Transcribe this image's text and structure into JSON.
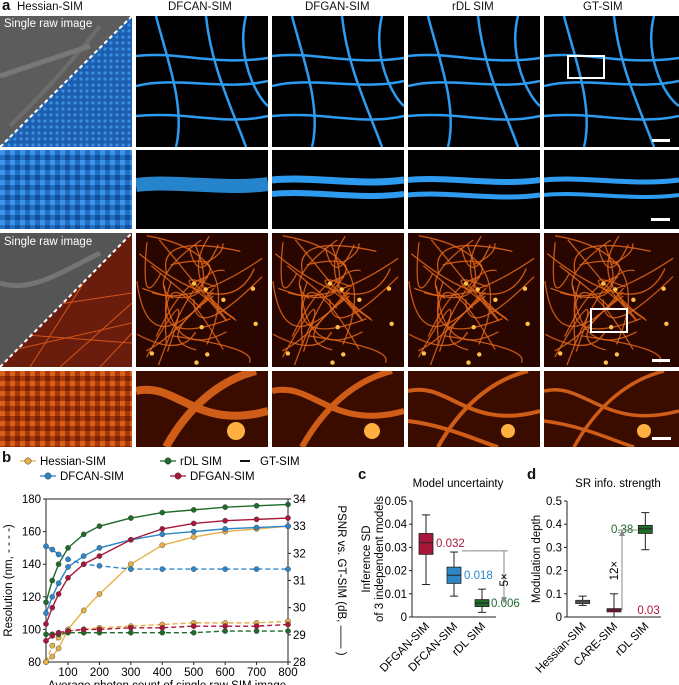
{
  "panel_a": {
    "letter": "a",
    "columns": [
      "Hessian-SIM",
      "DFCAN-SIM",
      "DFGAN-SIM",
      "rDL SIM",
      "GT-SIM"
    ],
    "raw_label_top": "Single raw image",
    "raw_label_bottom": "Single raw image"
  },
  "panel_b": {
    "letter": "b",
    "legend": [
      "Hessian-SIM",
      "rDL SIM",
      "GT-SIM",
      "DFCAN-SIM",
      "DFGAN-SIM"
    ],
    "xlabel": "Average photon count of single raw SIM image",
    "ylabel_left": "Resolution (nm, - - - -)",
    "ylabel_right": "PSNR vs. GT-SIM (dB, —— )",
    "x_ticks": [
      "100",
      "200",
      "300",
      "400",
      "500",
      "600",
      "700",
      "800"
    ],
    "y_left_ticks": [
      "80",
      "100",
      "120",
      "140",
      "160",
      "180"
    ],
    "y_right_ticks": [
      "28",
      "29",
      "30",
      "31",
      "32",
      "33",
      "34"
    ]
  },
  "panel_c": {
    "letter": "c",
    "title": "Model uncertainty",
    "ylabel1": "Inference SD",
    "ylabel2": "of 3 independent models",
    "y_ticks": [
      "0",
      "0.01",
      "0.02",
      "0.03",
      "0.04",
      "0.05"
    ],
    "categories": [
      "DFGAN-SIM",
      "DFCAN-SIM",
      "rDL SIM"
    ],
    "value_labels": [
      "0.032",
      "0.018",
      "0.006"
    ],
    "fold_label": "5×"
  },
  "panel_d": {
    "letter": "d",
    "title": "SR info. strength",
    "ylabel": "Modulation depth",
    "y_ticks": [
      "0",
      "0.1",
      "0.2",
      "0.3",
      "0.4",
      "0.5"
    ],
    "categories": [
      "Hessian-SIM",
      "CARE-SIM",
      "rDL SIM"
    ],
    "value_labels": [
      "0.38",
      "0.03"
    ],
    "fold_label": "12×"
  },
  "colors": {
    "hessian": "#e8b04a",
    "rdl": "#1e6b2a",
    "gt": "#111111",
    "dfcan": "#2e86c8",
    "dfgan": "#a8173a",
    "microtubule": "#2d9bf0",
    "actin": "#ff8a1e"
  },
  "chart_data": [
    {
      "type": "line",
      "x": [
        30,
        50,
        70,
        100,
        150,
        200,
        300,
        400,
        500,
        600,
        700,
        800
      ],
      "series": [
        {
          "name": "Hessian-SIM",
          "psnr_db": [
            28.0,
            28.2,
            28.5,
            29.2,
            29.9,
            30.5,
            31.6,
            32.3,
            32.6,
            32.8,
            32.9,
            33.0
          ],
          "resolution_nm": [
            80,
            90,
            95,
            99,
            100,
            101,
            102,
            103,
            104,
            104,
            104,
            105
          ]
        },
        {
          "name": "rDL SIM",
          "psnr_db": [
            30.2,
            31.0,
            31.6,
            32.2,
            32.7,
            33.0,
            33.3,
            33.5,
            33.6,
            33.7,
            33.75,
            33.8
          ],
          "resolution_nm": [
            97,
            97,
            97,
            98,
            98,
            98,
            98,
            98,
            98,
            99,
            99,
            99
          ]
        },
        {
          "name": "DFCAN-SIM",
          "psnr_db": [
            29.8,
            30.4,
            30.9,
            31.5,
            31.9,
            32.2,
            32.5,
            32.7,
            32.8,
            32.9,
            32.95,
            33.0
          ],
          "resolution_nm": [
            151,
            149,
            146,
            143,
            140,
            139,
            137,
            137,
            137,
            137,
            137,
            137
          ]
        },
        {
          "name": "DFGAN-SIM",
          "psnr_db": [
            29.4,
            30.0,
            30.5,
            31.1,
            31.6,
            31.9,
            32.5,
            32.9,
            33.1,
            33.2,
            33.25,
            33.3
          ],
          "resolution_nm": [
            93,
            96,
            98,
            99,
            100,
            100,
            101,
            101,
            102,
            102,
            102,
            103
          ]
        }
      ],
      "xlabel": "Average photon count of single raw SIM image",
      "ylabel": "Resolution (nm, - - - -)",
      "ylabel_right": "PSNR vs. GT-SIM (dB, —— )",
      "xlim": [
        30,
        800
      ],
      "ylim": [
        80,
        180
      ],
      "ylim_right": [
        28,
        34
      ],
      "legend": "top"
    },
    {
      "type": "box",
      "title": "Model uncertainty",
      "categories": [
        "DFGAN-SIM",
        "DFCAN-SIM",
        "rDL SIM"
      ],
      "median": [
        0.032,
        0.018,
        0.006
      ],
      "q1": [
        0.027,
        0.0145,
        0.0045
      ],
      "q3": [
        0.036,
        0.0215,
        0.0075
      ],
      "whisker_low": [
        0.014,
        0.009,
        0.002
      ],
      "whisker_high": [
        0.044,
        0.028,
        0.012
      ],
      "ylim": [
        0,
        0.05
      ]
    },
    {
      "type": "box",
      "title": "SR info. strength",
      "categories": [
        "Hessian-SIM",
        "CARE-SIM",
        "rDL SIM"
      ],
      "median": [
        0.065,
        0.03,
        0.38
      ],
      "q1": [
        0.058,
        0.022,
        0.36
      ],
      "q3": [
        0.072,
        0.036,
        0.395
      ],
      "whisker_low": [
        0.05,
        0.0,
        0.29
      ],
      "whisker_high": [
        0.09,
        0.1,
        0.45
      ],
      "ylim": [
        0,
        0.5
      ]
    }
  ]
}
